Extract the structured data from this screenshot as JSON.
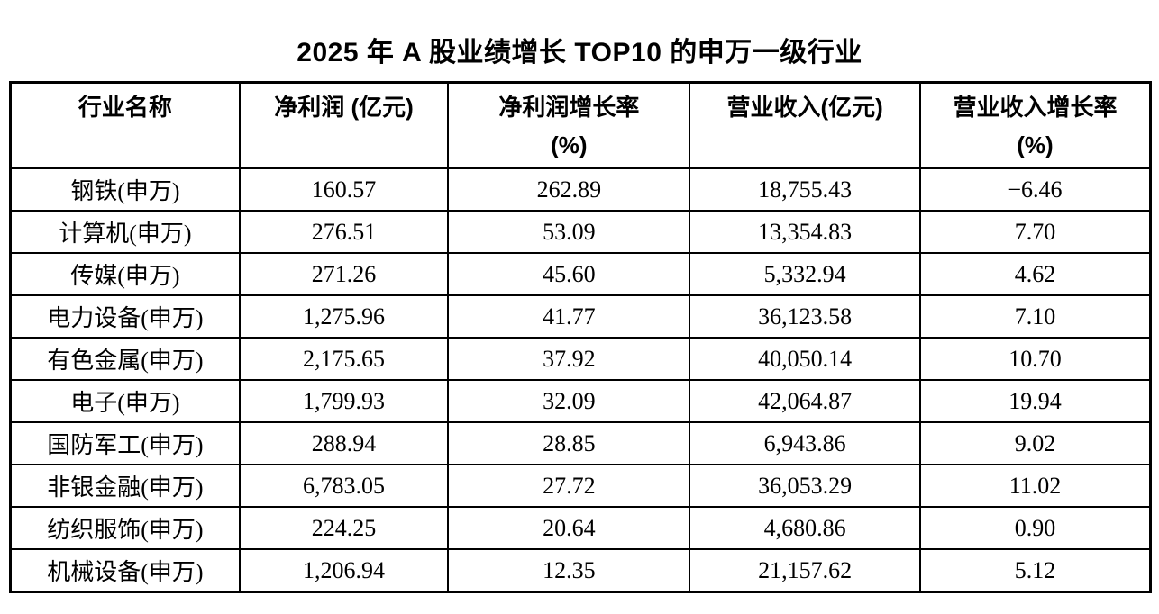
{
  "title": "2025 年 A 股业绩增长 TOP10 的申万一级行业",
  "table": {
    "columns": [
      {
        "line1": "行业名称",
        "line2": ""
      },
      {
        "line1": "净利润 (亿元)",
        "line2": ""
      },
      {
        "line1": "净利润增长率",
        "line2": "(%)"
      },
      {
        "line1": "营业收入(亿元)",
        "line2": ""
      },
      {
        "line1": "营业收入增长率",
        "line2": "(%)"
      }
    ],
    "rows": [
      {
        "industry": "钢铁(申万)",
        "net_profit": "160.57",
        "net_profit_growth": "262.89",
        "revenue": "18,755.43",
        "revenue_growth": "−6.46"
      },
      {
        "industry": "计算机(申万)",
        "net_profit": "276.51",
        "net_profit_growth": "53.09",
        "revenue": "13,354.83",
        "revenue_growth": "7.70"
      },
      {
        "industry": "传媒(申万)",
        "net_profit": "271.26",
        "net_profit_growth": "45.60",
        "revenue": "5,332.94",
        "revenue_growth": "4.62"
      },
      {
        "industry": "电力设备(申万)",
        "net_profit": "1,275.96",
        "net_profit_growth": "41.77",
        "revenue": "36,123.58",
        "revenue_growth": "7.10"
      },
      {
        "industry": "有色金属(申万)",
        "net_profit": "2,175.65",
        "net_profit_growth": "37.92",
        "revenue": "40,050.14",
        "revenue_growth": "10.70"
      },
      {
        "industry": "电子(申万)",
        "net_profit": "1,799.93",
        "net_profit_growth": "32.09",
        "revenue": "42,064.87",
        "revenue_growth": "19.94"
      },
      {
        "industry": "国防军工(申万)",
        "net_profit": "288.94",
        "net_profit_growth": "28.85",
        "revenue": "6,943.86",
        "revenue_growth": "9.02"
      },
      {
        "industry": "非银金融(申万)",
        "net_profit": "6,783.05",
        "net_profit_growth": "27.72",
        "revenue": "36,053.29",
        "revenue_growth": "11.02"
      },
      {
        "industry": "纺织服饰(申万)",
        "net_profit": "224.25",
        "net_profit_growth": "20.64",
        "revenue": "4,680.86",
        "revenue_growth": "0.90"
      },
      {
        "industry": "机械设备(申万)",
        "net_profit": "1,206.94",
        "net_profit_growth": "12.35",
        "revenue": "21,157.62",
        "revenue_growth": "5.12"
      }
    ]
  },
  "colors": {
    "text": "#000000",
    "background": "#ffffff",
    "border": "#000000"
  }
}
